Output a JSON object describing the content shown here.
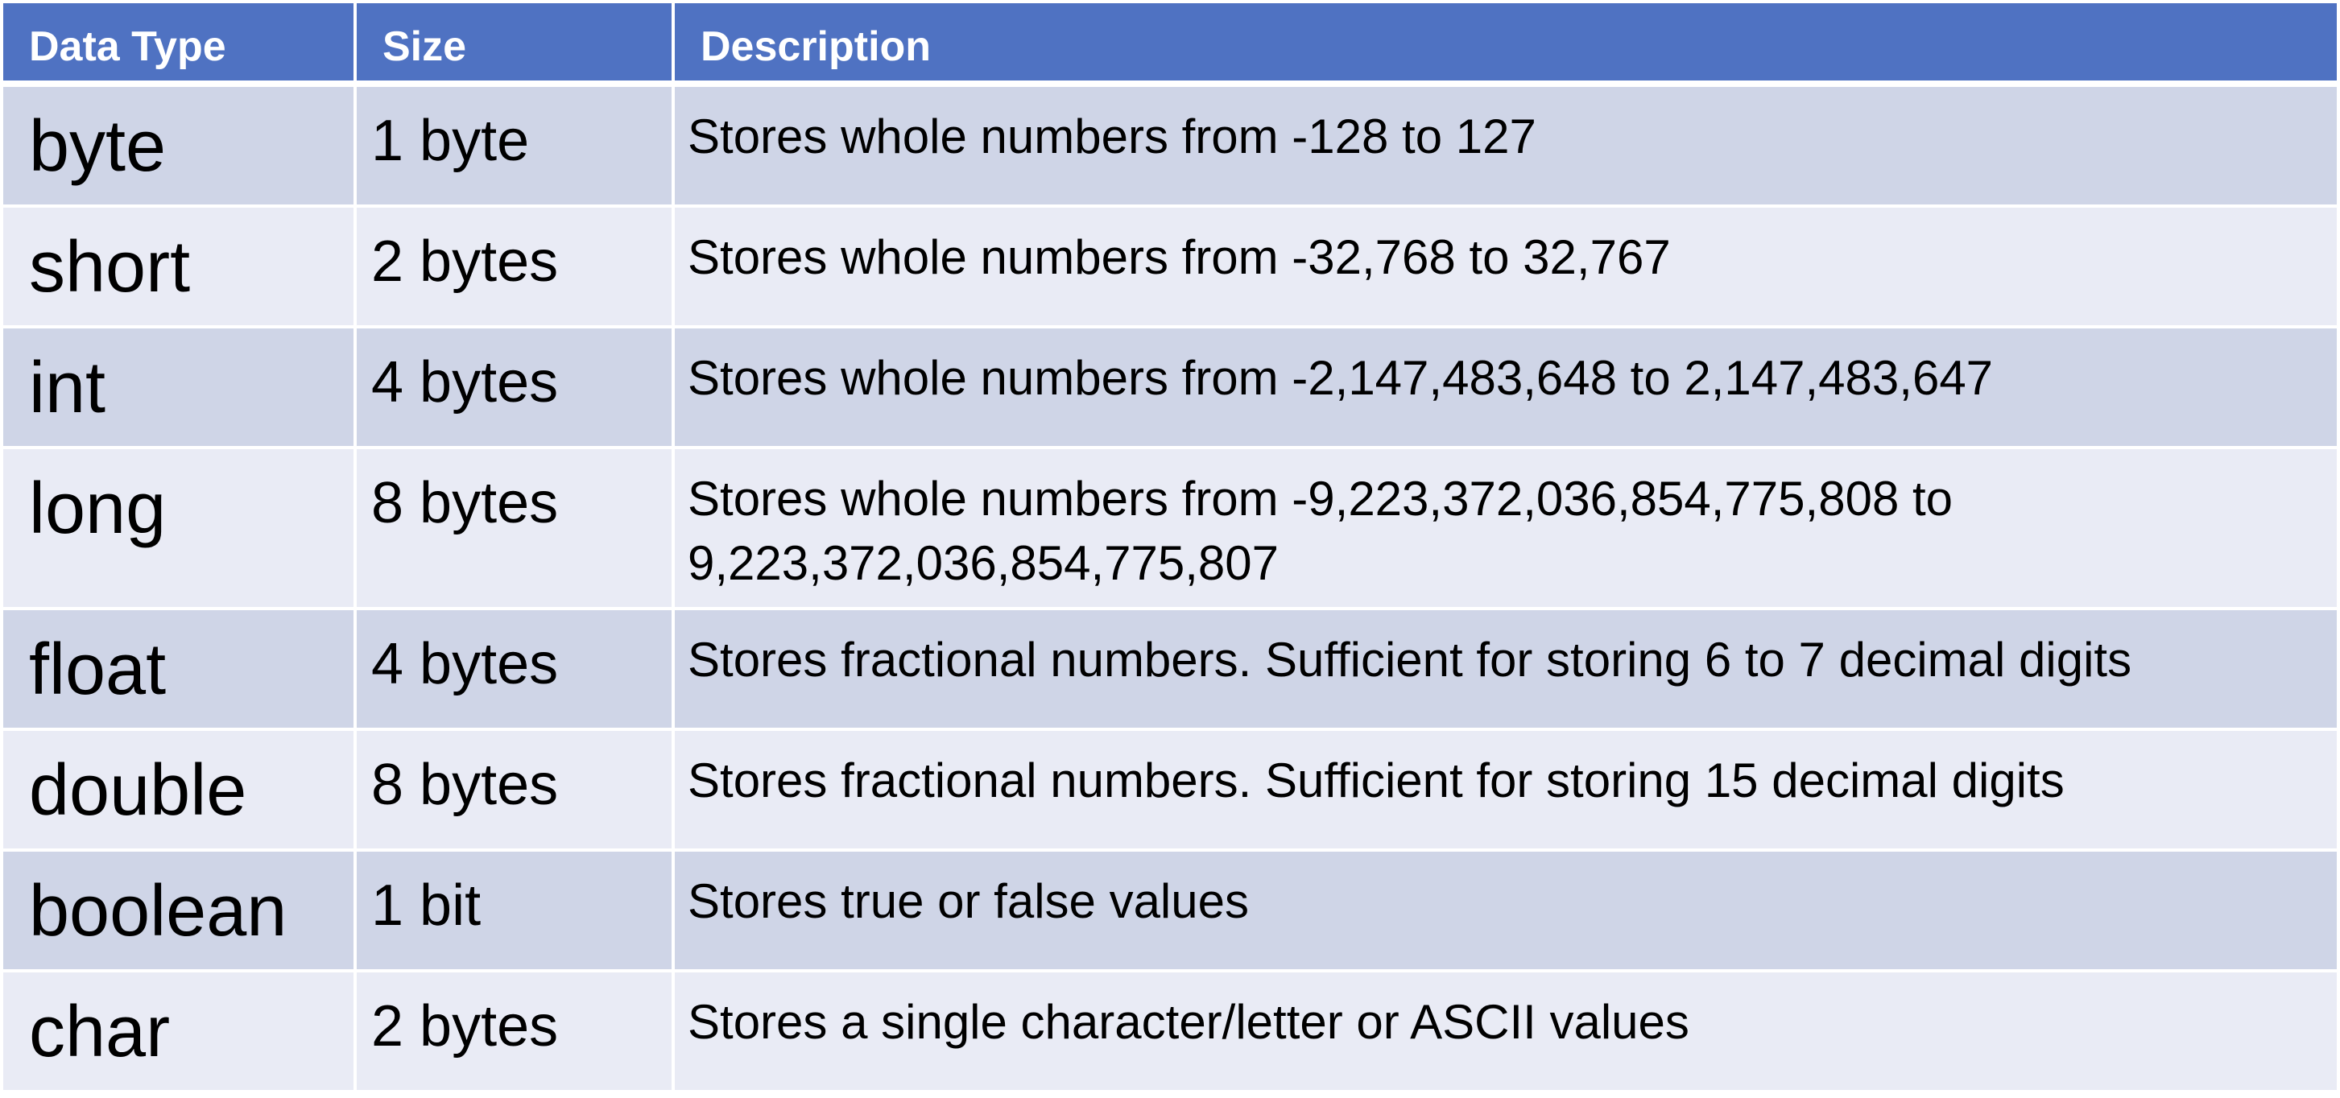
{
  "headers": {
    "data_type": "Data Type",
    "size": "Size",
    "description": "Description"
  },
  "rows": [
    {
      "type": "byte",
      "size": "1 byte",
      "description": "Stores whole numbers from -128 to 127"
    },
    {
      "type": "short",
      "size": "2 bytes",
      "description": "Stores whole numbers from -32,768 to 32,767"
    },
    {
      "type": "int",
      "size": "4 bytes",
      "description": "Stores whole numbers from -2,147,483,648 to 2,147,483,647"
    },
    {
      "type": "long",
      "size": "8 bytes",
      "description": "Stores whole numbers from -9,223,372,036,854,775,808 to 9,223,372,036,854,775,807"
    },
    {
      "type": "float",
      "size": "4 bytes",
      "description": "Stores fractional numbers. Sufficient for storing 6 to 7 decimal digits"
    },
    {
      "type": "double",
      "size": "8 bytes",
      "description": "Stores fractional numbers. Sufficient for storing 15 decimal digits"
    },
    {
      "type": "boolean",
      "size": "1 bit",
      "description": "Stores true or false values"
    },
    {
      "type": "char",
      "size": "2 bytes",
      "description": "Stores a single character/letter or ASCII values"
    }
  ],
  "colors": {
    "header_bg": "#4f72c2",
    "row_odd_bg": "#cfd5e7",
    "row_even_bg": "#e9ebf5",
    "header_text": "#ffffff",
    "body_text": "#000000"
  }
}
